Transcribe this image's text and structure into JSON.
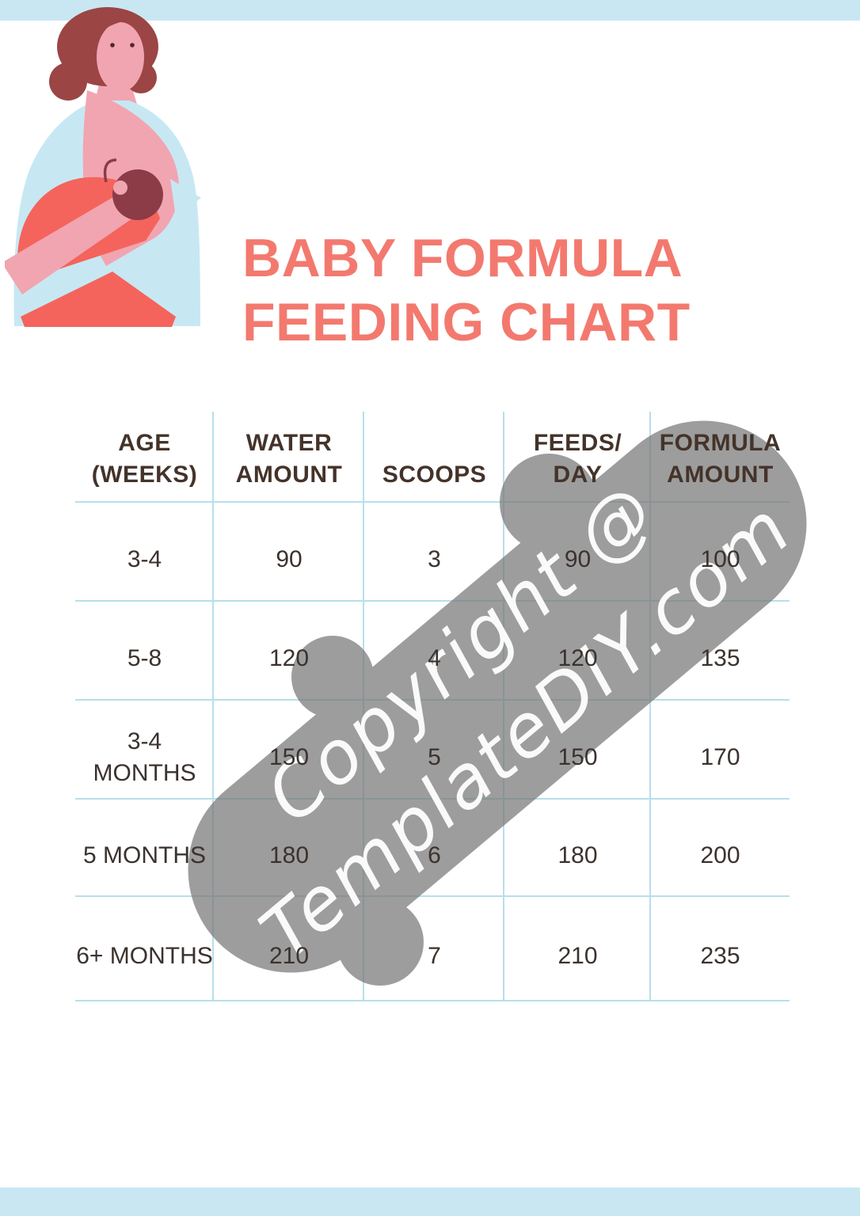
{
  "header": {
    "title_line1": "BABY FORMULA",
    "title_line2": "FEEDING CHART"
  },
  "illustration": {
    "alt": "Mother breastfeeding baby"
  },
  "watermark": {
    "line1": "Copyright @",
    "line2": "TemplateDIY.com"
  },
  "table": {
    "headers": [
      "AGE\n(WEEKS)",
      "WATER\nAMOUNT",
      "SCOOPS",
      "FEEDS/\nDAY",
      "FORMULA\nAMOUNT"
    ],
    "rows": [
      [
        "3-4",
        "90",
        "3",
        "90",
        "100"
      ],
      [
        "5-8",
        "120",
        "4",
        "120",
        "135"
      ],
      [
        "3-4\nMONTHS",
        "150",
        "5",
        "150",
        "170"
      ],
      [
        "5 MONTHS",
        "180",
        "6",
        "180",
        "200"
      ],
      [
        "6+ MONTHS",
        "210",
        "7",
        "210",
        "235"
      ]
    ]
  },
  "colors": {
    "accent_blue": "#C9E7F2",
    "grid_line": "#B7DFEB",
    "title_coral": "#F3796F",
    "header_text": "#44332A",
    "body_text": "#3B322E",
    "watermark_gray": "#787878",
    "ill_blue": "#C7E8F3",
    "ill_pink": "#F1A5B1",
    "ill_coral": "#F4645D",
    "ill_hair": "#9B4545",
    "ill_baby": "#8C3C47",
    "ill_dark": "#4F2630"
  }
}
